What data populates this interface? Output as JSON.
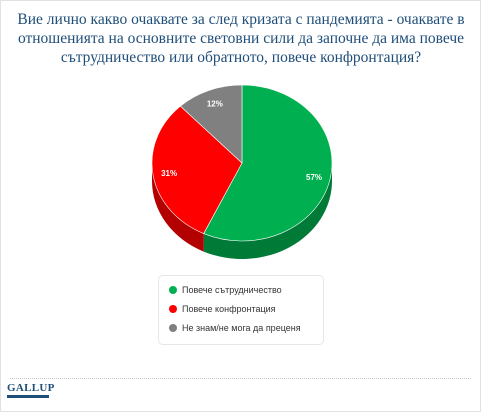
{
  "title": "Вие лично какво очаквате за след кризата с пандемията - очаквате в отношенията на основните световни сили да започне да има повече сътрудничество или обратното, повече конфронтация?",
  "logo_text": "GALLUP",
  "chart_data": {
    "type": "pie",
    "title": "Вие лично какво очаквате за след кризата с пандемията - очаквате в отношенията на основните световни сили да започне да има повече сътрудничество или обратното, повече конфронтация?",
    "slices": [
      {
        "label": "Повече сътрудничество",
        "value": 57,
        "display": "57%",
        "color": "#00b050",
        "side_color": "#007a37"
      },
      {
        "label": "Повече конфронтация",
        "value": 31,
        "display": "31%",
        "color": "#ff0000",
        "side_color": "#b30000"
      },
      {
        "label": "Не знам/не мога да преценя",
        "value": 12,
        "display": "12%",
        "color": "#808080",
        "side_color": "#555555"
      }
    ],
    "legend_position": "bottom-center"
  }
}
